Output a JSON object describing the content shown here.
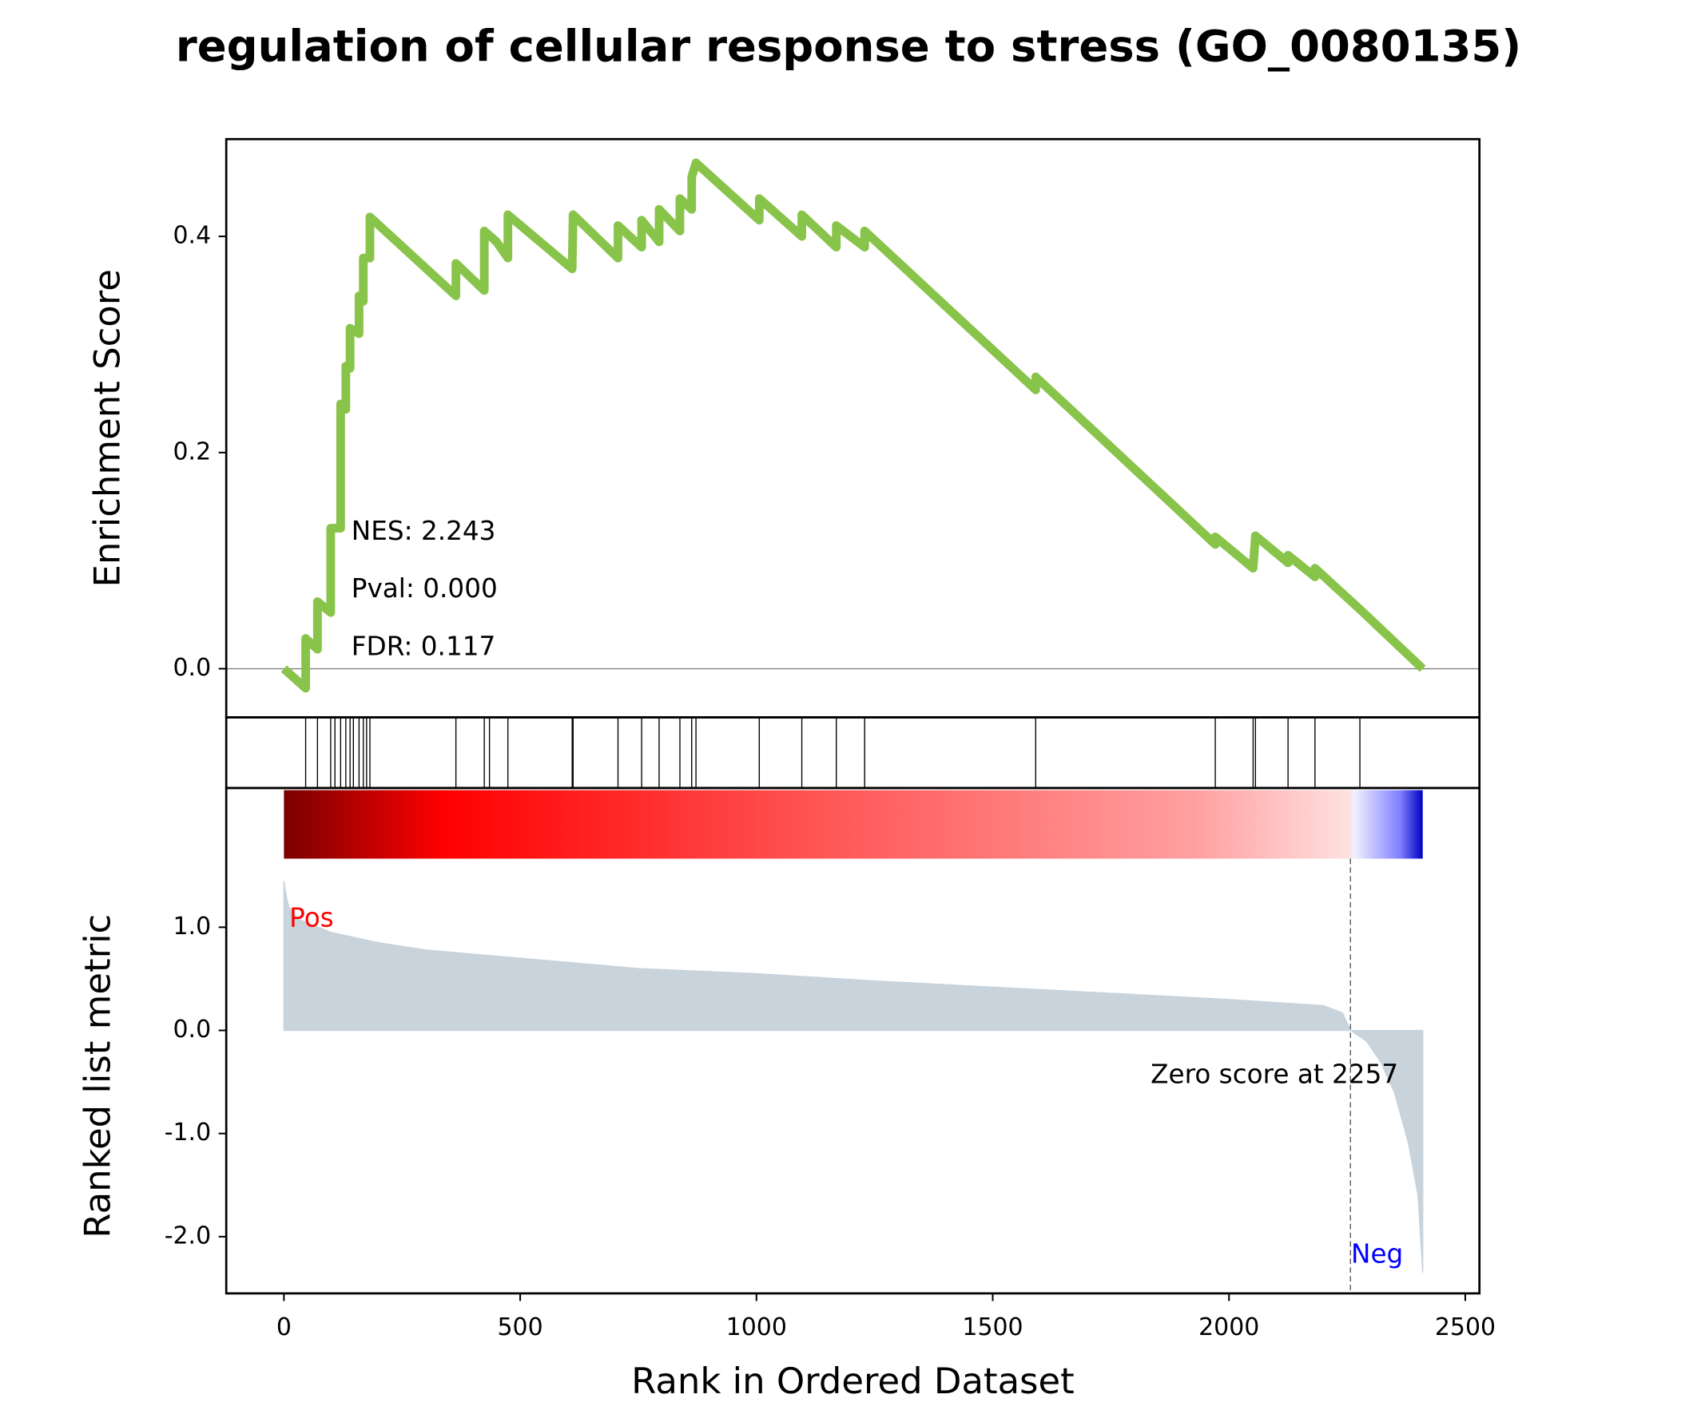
{
  "chart_data": {
    "type": "gsea",
    "title": "regulation of cellular response to stress (GO_0080135)",
    "xlabel": "Rank in Ordered Dataset",
    "xlim": [
      -122,
      2530
    ],
    "xticks": [
      0,
      500,
      1000,
      1500,
      2000,
      2500
    ],
    "es": {
      "ylabel": "Enrichment Score",
      "color": "#88c34a",
      "ylim": [
        -0.045,
        0.49
      ],
      "yticks": [
        {
          "value": 0,
          "label": "0.0"
        },
        0.2,
        0.4
      ],
      "x": [
        0,
        46,
        46,
        71,
        71,
        99,
        99,
        120,
        120,
        131,
        131,
        140,
        140,
        159,
        159,
        168,
        168,
        182,
        182,
        364,
        364,
        424,
        424,
        450,
        474,
        474,
        610,
        612,
        707,
        707,
        757,
        757,
        794,
        794,
        838,
        838,
        863,
        863,
        872,
        1006,
        1006,
        1096,
        1096,
        1169,
        1169,
        1229,
        1229,
        1591,
        1591,
        1971,
        1971,
        2051,
        2056,
        2125,
        2125,
        2182,
        2182,
        2277,
        2410
      ],
      "values": [
        0,
        -0.018,
        0.028,
        0.018,
        0.062,
        0.052,
        0.13,
        0.13,
        0.245,
        0.24,
        0.28,
        0.278,
        0.315,
        0.31,
        0.345,
        0.34,
        0.38,
        0.38,
        0.418,
        0.345,
        0.375,
        0.35,
        0.405,
        0.395,
        0.38,
        0.42,
        0.37,
        0.42,
        0.38,
        0.41,
        0.39,
        0.415,
        0.395,
        0.425,
        0.405,
        0.435,
        0.425,
        0.455,
        0.468,
        0.415,
        0.435,
        0.4,
        0.42,
        0.39,
        0.41,
        0.39,
        0.405,
        0.258,
        0.27,
        0.115,
        0.122,
        0.093,
        0.123,
        0.098,
        0.105,
        0.085,
        0.093,
        0.055,
        0
      ]
    },
    "annotations": [
      "NES: 2.243",
      "Pval: 0.000",
      "FDR: 0.117"
    ],
    "hits": [
      46,
      71,
      99,
      108,
      120,
      131,
      140,
      147,
      159,
      168,
      175,
      182,
      364,
      424,
      435,
      474,
      610,
      612,
      707,
      757,
      794,
      838,
      863,
      872,
      1006,
      1096,
      1169,
      1229,
      1591,
      1971,
      2051,
      2056,
      2125,
      2182,
      2277
    ],
    "metric": {
      "ylabel": "Ranked list metric",
      "color": "#c8d3dc",
      "ylim": [
        -2.55,
        2.35
      ],
      "yticks": [
        {
          "value": 1,
          "label": "1.0"
        },
        {
          "value": 0,
          "label": "0.0"
        },
        {
          "value": -1,
          "label": "-1.0"
        },
        {
          "value": -2,
          "label": "-2.0"
        }
      ],
      "x": [
        0,
        5,
        10,
        30,
        100,
        200,
        300,
        500,
        750,
        1000,
        1250,
        1500,
        1750,
        2000,
        2200,
        2240,
        2257,
        2290,
        2320,
        2350,
        2380,
        2400,
        2410
      ],
      "values": [
        1.45,
        1.3,
        1.2,
        1.08,
        0.95,
        0.85,
        0.78,
        0.7,
        0.6,
        0.55,
        0.48,
        0.42,
        0.36,
        0.3,
        0.24,
        0.17,
        0,
        -0.1,
        -0.3,
        -0.6,
        -1.1,
        -1.6,
        -2.35
      ],
      "pos_label": "Pos",
      "neg_label": "Neg",
      "zero_score": {
        "text": "Zero score at 2257",
        "x": 2257
      }
    }
  }
}
